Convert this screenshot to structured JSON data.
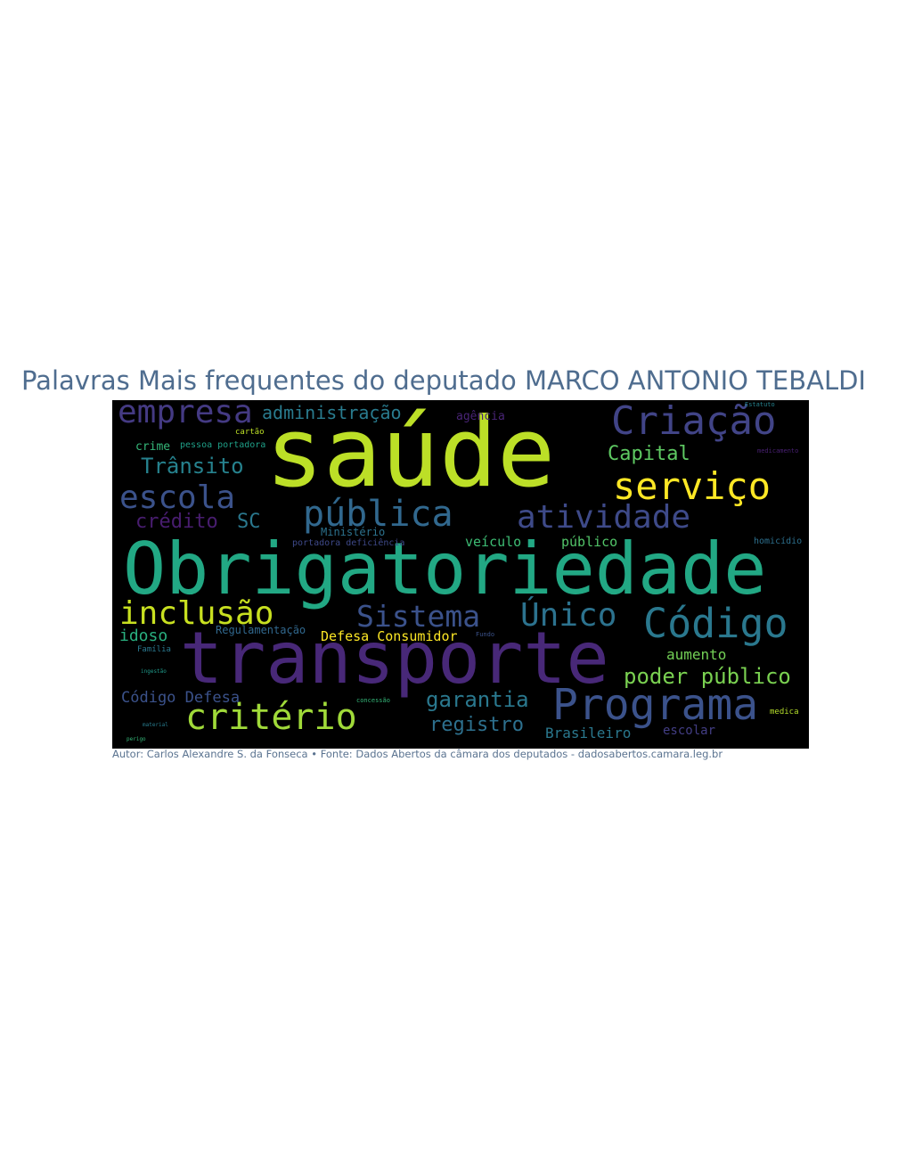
{
  "title": "Palavras Mais frequentes do deputado MARCO ANTONIO TEBALDI",
  "caption": "Autor: Carlos Alexandre S. da Fonseca • Fonte: Dados Abertos da câmara dos deputados - dadosabertos.camara.leg.br",
  "colors": {
    "background": "#000000",
    "title": "#4f6d8f",
    "caption": "#5a7390"
  },
  "words": [
    {
      "text": "saúde",
      "color": "#bcdf27"
    },
    {
      "text": "Obrigatoriedade",
      "color": "#22a884"
    },
    {
      "text": "transporte",
      "color": "#482878"
    },
    {
      "text": "Criação",
      "color": "#414487"
    },
    {
      "text": "serviço",
      "color": "#fde725"
    },
    {
      "text": "Programa",
      "color": "#3b528b"
    },
    {
      "text": "Código",
      "color": "#2a788e"
    },
    {
      "text": "critério",
      "color": "#a0da39"
    },
    {
      "text": "pública",
      "color": "#31688e"
    },
    {
      "text": "atividade",
      "color": "#3e4a89"
    },
    {
      "text": "inclusão",
      "color": "#c8e020"
    },
    {
      "text": "Sistema",
      "color": "#3b528b"
    },
    {
      "text": "Único",
      "color": "#2c728e"
    },
    {
      "text": "escola",
      "color": "#3b528b"
    },
    {
      "text": "empresa",
      "color": "#443a83"
    },
    {
      "text": "Trânsito",
      "color": "#26828e"
    },
    {
      "text": "poder público",
      "color": "#7ad151"
    },
    {
      "text": "garantia",
      "color": "#2a788e"
    },
    {
      "text": "registro",
      "color": "#2d708e"
    },
    {
      "text": "Capital",
      "color": "#5ec962"
    },
    {
      "text": "administração",
      "color": "#297b8e"
    },
    {
      "text": "crédito",
      "color": "#481d6f"
    },
    {
      "text": "SC",
      "color": "#2a788e"
    },
    {
      "text": "idoso",
      "color": "#29af7f"
    },
    {
      "text": "Código Defesa",
      "color": "#3b528b"
    },
    {
      "text": "Brasileiro",
      "color": "#2a788e"
    },
    {
      "text": "aumento",
      "color": "#73d056"
    },
    {
      "text": "escolar",
      "color": "#433e85"
    },
    {
      "text": "Defesa Consumidor",
      "color": "#fde725"
    },
    {
      "text": "veículo",
      "color": "#3dbc74"
    },
    {
      "text": "público",
      "color": "#52c569"
    },
    {
      "text": "Regulamentação",
      "color": "#31688e"
    },
    {
      "text": "Ministério",
      "color": "#2c728e"
    },
    {
      "text": "crime",
      "color": "#35b779"
    },
    {
      "text": "agência",
      "color": "#482475"
    },
    {
      "text": "pessoa portadora",
      "color": "#1fa088"
    },
    {
      "text": "cartão",
      "color": "#bddf26"
    },
    {
      "text": "portadora deficiência",
      "color": "#3e4989"
    },
    {
      "text": "homicídio",
      "color": "#2d708e"
    },
    {
      "text": "medicamento",
      "color": "#482071"
    },
    {
      "text": "medica",
      "color": "#b5de2b"
    },
    {
      "text": "Estatuto",
      "color": "#26828e"
    },
    {
      "text": "Fundo",
      "color": "#3b528b"
    },
    {
      "text": "concessão",
      "color": "#35b779"
    },
    {
      "text": "material",
      "color": "#287c8e"
    },
    {
      "text": "Família",
      "color": "#2a788e"
    },
    {
      "text": "ingestão",
      "color": "#1f9a8a"
    },
    {
      "text": "perigo",
      "color": "#35b779"
    }
  ]
}
